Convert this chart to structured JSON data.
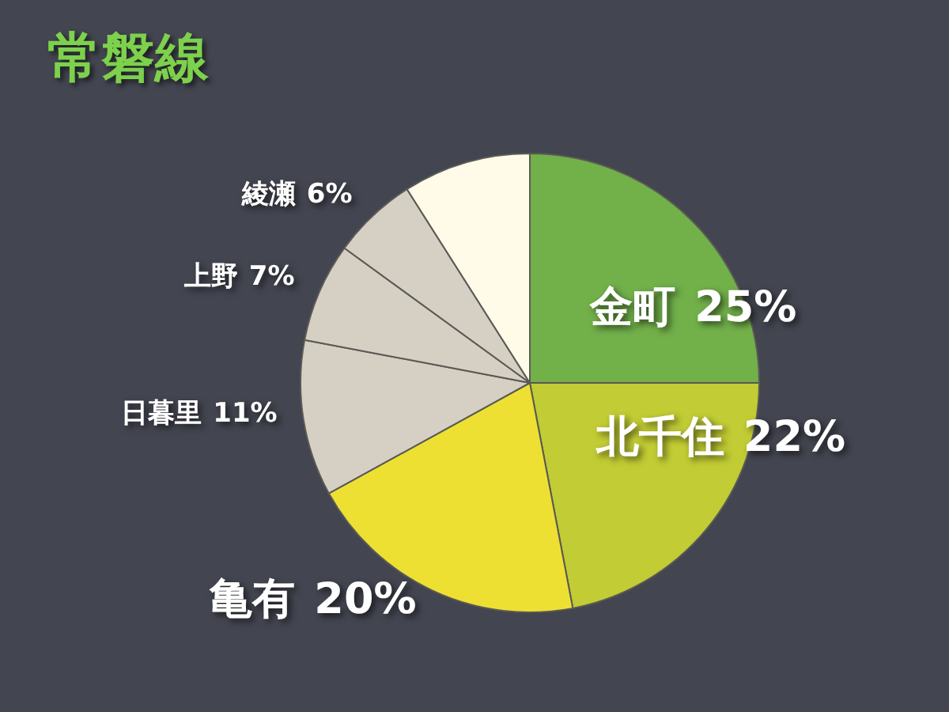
{
  "chart_data": {
    "type": "pie",
    "title": "常磐線",
    "categories": [
      "金町",
      "北千住",
      "亀有",
      "日暮里",
      "上野",
      "綾瀬",
      null
    ],
    "values": [
      25,
      22,
      20,
      11,
      7,
      6,
      9
    ],
    "value_labels": [
      "25%",
      "22%",
      "20%",
      "11%",
      "7%",
      "6%",
      null
    ],
    "colors": [
      "#72b04a",
      "#c2cc34",
      "#eee033",
      "#d6d0c4",
      "#d6d0c4",
      "#d6d0c4",
      "#fffbe8"
    ],
    "legend": false
  }
}
